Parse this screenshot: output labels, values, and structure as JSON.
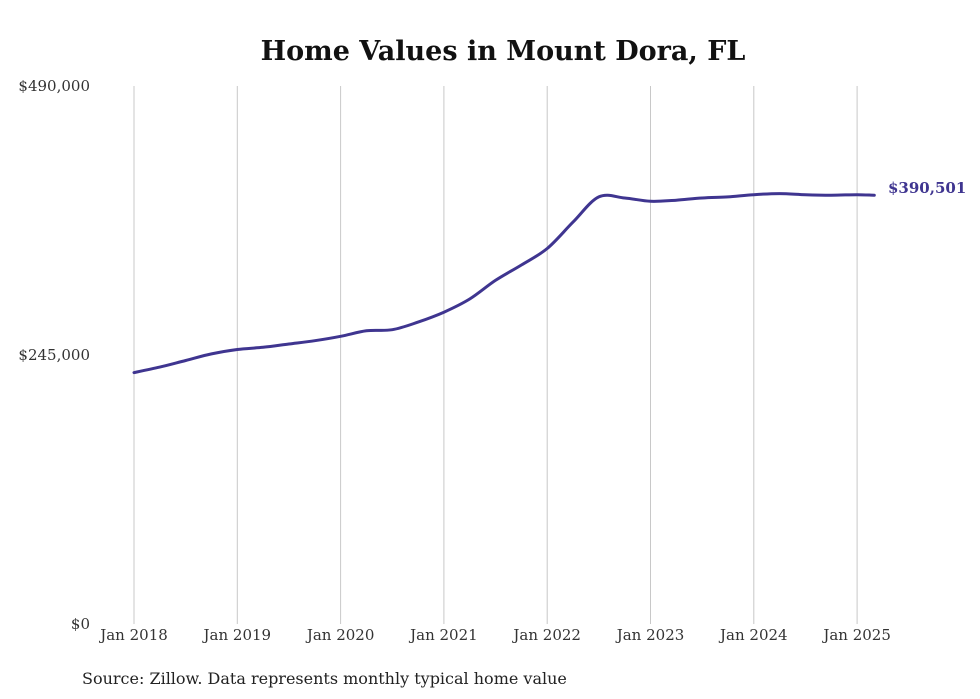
{
  "chart_data": {
    "type": "line",
    "title": "Home Values in Mount Dora, FL",
    "xlabel": "",
    "ylabel": "",
    "source": "Source: Zillow. Data represents monthly typical home value",
    "y_ticks": [
      "$0",
      "$245,000",
      "$490,000"
    ],
    "y_tick_values": [
      0,
      245000,
      490000
    ],
    "ylim": [
      0,
      490000
    ],
    "x_ticks": [
      "Jan 2018",
      "Jan 2019",
      "Jan 2020",
      "Jan 2021",
      "Jan 2022",
      "Jan 2023",
      "Jan 2024",
      "Jan 2025"
    ],
    "x_tick_values": [
      "2018-01",
      "2019-01",
      "2020-01",
      "2021-01",
      "2022-01",
      "2023-01",
      "2024-01",
      "2025-01"
    ],
    "xlim": [
      "2018-01",
      "2025-03"
    ],
    "grid": "vertical",
    "line_color": "#3f3590",
    "end_label": "$390,501",
    "series": [
      {
        "name": "",
        "x": [
          "2018-01",
          "2018-04",
          "2018-07",
          "2018-10",
          "2019-01",
          "2019-04",
          "2019-07",
          "2019-10",
          "2020-01",
          "2020-04",
          "2020-07",
          "2020-10",
          "2021-01",
          "2021-04",
          "2021-07",
          "2021-10",
          "2022-01",
          "2022-04",
          "2022-07",
          "2022-10",
          "2023-01",
          "2023-04",
          "2023-07",
          "2023-10",
          "2024-01",
          "2024-04",
          "2024-07",
          "2024-10",
          "2025-01",
          "2025-03"
        ],
        "values": [
          229000,
          234000,
          240000,
          246000,
          250000,
          252000,
          255000,
          258000,
          262000,
          267000,
          268000,
          275000,
          284000,
          296000,
          313000,
          327000,
          342000,
          366000,
          389000,
          388000,
          385000,
          386000,
          388000,
          389000,
          391000,
          392000,
          391000,
          390500,
          391000,
          390501
        ]
      }
    ]
  }
}
